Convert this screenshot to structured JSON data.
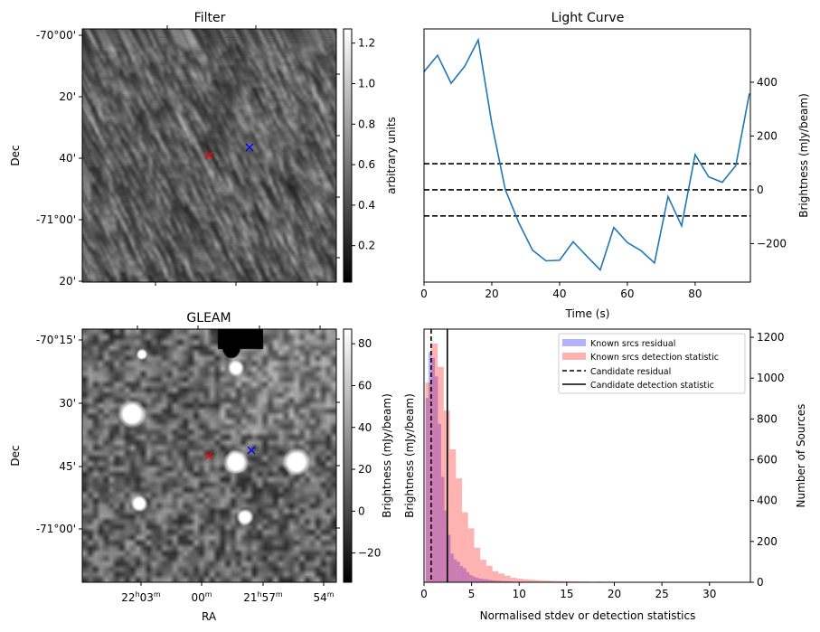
{
  "chart_data": [
    {
      "type": "image",
      "title": "Filter",
      "ylabel": "Dec",
      "yticks": [
        "-70°00'",
        "20'",
        "40'",
        "-71°00'",
        "20'"
      ],
      "colorbar": {
        "label": "arbitrary units",
        "ticks": [
          "0.2",
          "0.4",
          "0.6",
          "0.8",
          "1.0",
          "1.2"
        ],
        "tick_values": [
          0.2,
          0.4,
          0.6,
          0.8,
          1.0,
          1.2
        ],
        "range": [
          0.02,
          1.27
        ],
        "cmap": "gray"
      },
      "markers": [
        {
          "symbol": "x",
          "color": "#ff0000"
        },
        {
          "symbol": "x",
          "color": "#0000ff"
        }
      ]
    },
    {
      "type": "image",
      "title": "GLEAM",
      "xlabel": "RA",
      "ylabel": "Dec",
      "xticks": [
        {
          "h": "22",
          "hs": "h",
          "m": "03",
          "ms": "m"
        },
        {
          "h": "",
          "hs": "",
          "m": "00",
          "ms": "m"
        },
        {
          "h": "21",
          "hs": "h",
          "m": "57",
          "ms": "m"
        },
        {
          "h": "",
          "hs": "",
          "m": "54",
          "ms": "m"
        }
      ],
      "yticks": [
        "-70°15'",
        "30'",
        "45'",
        "-71°00'"
      ],
      "colorbar": {
        "label": "Brightness (mJy/beam)",
        "ticks": [
          "−20",
          "0",
          "20",
          "40",
          "60",
          "80"
        ],
        "tick_values": [
          -20,
          0,
          20,
          40,
          60,
          80
        ],
        "range": [
          -34,
          87
        ],
        "cmap": "gray"
      },
      "markers": [
        {
          "symbol": "x",
          "color": "#ff0000"
        },
        {
          "symbol": "x",
          "color": "#0000ff"
        }
      ]
    },
    {
      "type": "line",
      "title": "Light Curve",
      "xlabel": "Time (s)",
      "ylabel_right": "Brightness (mJy/beam)",
      "x": [
        0,
        4,
        8,
        12,
        16,
        20,
        24,
        28,
        32,
        36,
        40,
        44,
        48,
        52,
        56,
        60,
        64,
        68,
        72,
        76,
        80,
        84,
        88,
        92,
        96
      ],
      "y": [
        439,
        500,
        396,
        459,
        557,
        246,
        0,
        -123,
        -224,
        -264,
        -262,
        -193,
        -246,
        -298,
        -140,
        -196,
        -226,
        -272,
        -25,
        -134,
        131,
        48,
        28,
        90,
        358
      ],
      "color": "#1f77b4",
      "hlines": [
        97,
        0,
        -97
      ],
      "xlim": [
        0,
        96.3
      ],
      "ylim": [
        -343,
        598
      ],
      "xticks": [
        "0",
        "20",
        "40",
        "60",
        "80"
      ],
      "xtick_values": [
        0,
        20,
        40,
        60,
        80
      ],
      "yticks": [
        "−200",
        "0",
        "200",
        "400"
      ],
      "ytick_values": [
        -200,
        0,
        200,
        400
      ]
    },
    {
      "type": "bar",
      "subtype": "histogram",
      "xlabel": "Normalised stdev or detection statistics",
      "ylabel_left": "Brightness (mJy/beam)",
      "ylabel_right": "Number of Sources",
      "xlim": [
        0,
        34.3
      ],
      "ylim": [
        0,
        1240
      ],
      "xticks": [
        "0",
        "5",
        "10",
        "15",
        "20",
        "25",
        "30"
      ],
      "xtick_values": [
        0,
        5,
        10,
        15,
        20,
        25,
        30
      ],
      "yticks": [
        "0",
        "200",
        "400",
        "600",
        "800",
        "1000",
        "1200"
      ],
      "ytick_values": [
        0,
        200,
        400,
        600,
        800,
        1000,
        1200
      ],
      "series": [
        {
          "name": "Known srcs residual",
          "color": "#0000ff",
          "alpha": 0.3,
          "bin_start": 0.15,
          "bin_width": 0.33,
          "values": [
            902,
            1128,
            1099,
            1008,
            776,
            516,
            352,
            233,
            140,
            112,
            101,
            80,
            69,
            50,
            35,
            28,
            22,
            18,
            16,
            15,
            12,
            10,
            8,
            8,
            6,
            5,
            5,
            4,
            3,
            3,
            3,
            2,
            2,
            2,
            1,
            1,
            1,
            1,
            0,
            1,
            0,
            0,
            1,
            0,
            0,
            0,
            0,
            0,
            0,
            0,
            0,
            1
          ]
        },
        {
          "name": "Known srcs detection statistic",
          "color": "#ff0000",
          "alpha": 0.3,
          "bin_start": 0.15,
          "bin_width": 0.64,
          "values": [
            978,
            1169,
            1055,
            842,
            651,
            509,
            343,
            264,
            169,
            110,
            81,
            54,
            43,
            32,
            22,
            18,
            15,
            12,
            10,
            8,
            7,
            6,
            5,
            5,
            4,
            3,
            3,
            2,
            3,
            2,
            2,
            1,
            2,
            1,
            1,
            2,
            1,
            1,
            1,
            0,
            1,
            1,
            0,
            1,
            0,
            1,
            0,
            1,
            0,
            0,
            1
          ]
        }
      ],
      "vlines": [
        {
          "name": "Candidate residual",
          "value": 0.75,
          "style": "dashed"
        },
        {
          "name": "Candidate detection statistic",
          "value": 2.45,
          "style": "solid"
        }
      ],
      "legend": "top-right"
    }
  ]
}
